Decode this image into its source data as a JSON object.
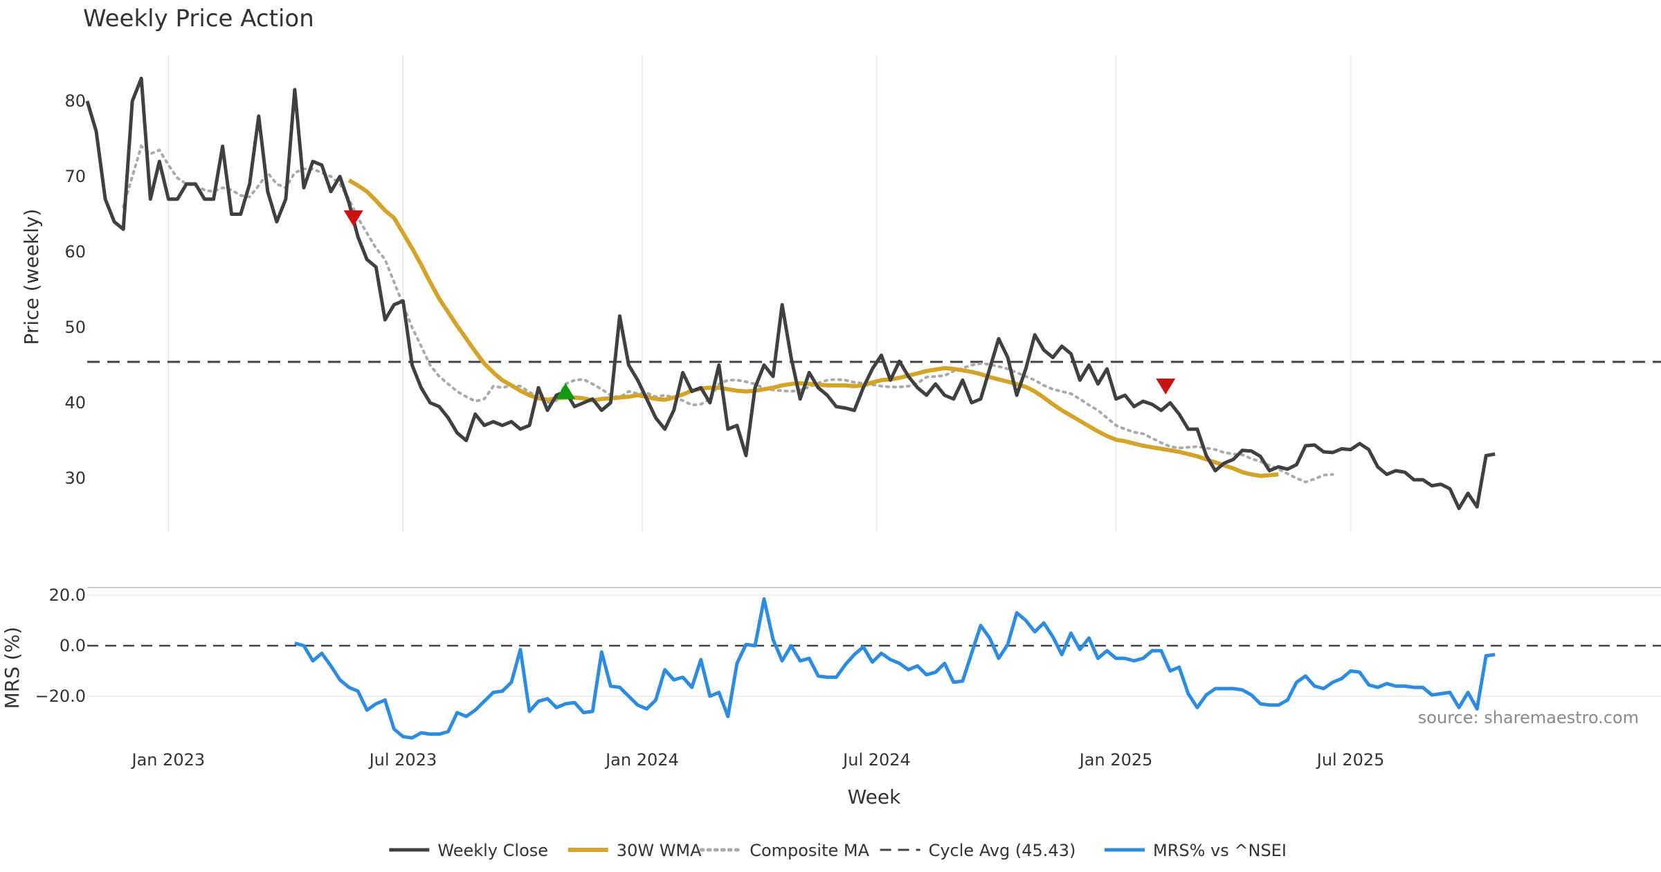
{
  "chart_data": {
    "type": "line",
    "title": "Weekly Price Action",
    "source": "source: sharemaestro.com",
    "xlabel": "Week",
    "x_ticks": [
      {
        "label": "Jan 2023",
        "week": 9
      },
      {
        "label": "Jul 2023",
        "week": 35
      },
      {
        "label": "Jan 2024",
        "week": 61.5
      },
      {
        "label": "Jul 2024",
        "week": 87.5
      },
      {
        "label": "Jan 2025",
        "week": 114
      },
      {
        "label": "Jul 2025",
        "week": 140
      }
    ],
    "x_range": [
      0,
      156
    ],
    "price_panel": {
      "ylabel": "Price (weekly)",
      "ylim": [
        22.5,
        86.5
      ],
      "yticks": [
        30,
        40,
        50,
        60,
        70,
        80
      ],
      "cycle_avg": 45.43,
      "weekly_close": [
        80,
        76,
        67,
        64,
        63,
        80,
        83,
        67,
        72,
        67,
        67,
        69,
        69,
        67,
        67,
        74,
        65,
        65,
        69,
        78,
        68,
        64,
        67,
        81.5,
        68.5,
        72,
        71.5,
        68,
        70,
        66.5,
        62,
        59,
        58,
        51,
        53,
        53.5,
        45,
        42,
        40,
        39.5,
        38,
        36,
        35,
        38.5,
        37,
        37.5,
        37,
        37.5,
        36.5,
        37,
        42,
        39,
        41,
        41.5,
        39.5,
        40,
        40.5,
        39,
        40,
        51.5,
        45,
        43,
        40.5,
        38,
        36.5,
        39,
        44,
        41.5,
        42,
        40,
        45,
        36.5,
        37,
        33,
        42,
        45,
        43.5,
        53,
        46,
        40.5,
        44,
        42,
        41,
        39.5,
        39.3,
        39,
        42,
        44.5,
        46.3,
        43,
        45.5,
        43.5,
        42,
        41,
        42.5,
        41,
        40.5,
        43,
        40,
        40.5,
        44.5,
        48.5,
        46,
        41,
        44.5,
        49,
        47,
        46,
        47.5,
        46.5,
        43,
        45,
        42.5,
        44.5,
        40.5,
        41,
        39.5,
        40.2,
        39.8,
        39,
        40,
        38.5,
        36.5,
        36.5,
        33,
        31,
        32,
        32.5,
        33.7,
        33.6,
        32.9,
        31,
        31.5,
        31.2,
        31.8,
        34.3,
        34.4,
        33.5,
        33.4,
        33.9,
        33.8,
        34.6,
        33.8,
        31.5,
        30.5,
        31,
        30.8,
        29.8,
        29.8,
        29,
        29.2,
        28.6,
        26,
        28,
        26.2,
        33,
        33.2
      ],
      "wma_30": {
        "start_week": 29,
        "values": [
          69.5,
          68.8,
          68,
          66.8,
          65.5,
          64.5,
          62.5,
          60.5,
          58.3,
          56,
          53.8,
          52,
          50.2,
          48.5,
          46.8,
          45.2,
          44,
          43,
          42.3,
          41.6,
          41,
          40.6,
          40.4,
          40.6,
          40.7,
          40.7,
          40.6,
          40.3,
          40.5,
          40.6,
          40.7,
          40.8,
          41,
          40.8,
          40.5,
          40.4,
          40.7,
          41.1,
          41.6,
          41.9,
          42,
          42,
          41.8,
          41.6,
          41.5,
          41.6,
          41.8,
          42,
          42.3,
          42.5,
          42.6,
          42.5,
          42.4,
          42.3,
          42.3,
          42.3,
          42.2,
          42.3,
          42.7,
          43,
          43.1,
          43.3,
          43.6,
          43.9,
          44.2,
          44.4,
          44.6,
          44.5,
          44.3,
          44.1,
          43.8,
          43.4,
          43.1,
          42.8,
          42.5,
          42.1,
          41.5,
          40.7,
          39.8,
          39,
          38.3,
          37.6,
          36.9,
          36.2,
          35.6,
          35.1,
          34.9,
          34.6,
          34.3,
          34.1,
          33.9,
          33.7,
          33.5,
          33.2,
          32.9,
          32.5,
          32.1,
          31.7,
          31.3,
          30.8,
          30.5,
          30.3,
          30.4,
          30.5
        ]
      },
      "composite_ma": {
        "start_week": 4,
        "values": [
          66,
          70,
          74,
          73,
          73.5,
          71.5,
          69.8,
          69,
          68.8,
          68.2,
          68,
          68.5,
          68.2,
          67.5,
          67.3,
          68.8,
          70.5,
          69,
          68.5,
          70.5,
          71,
          71,
          70.5,
          70,
          69,
          67,
          64.5,
          62.5,
          60.5,
          59,
          56,
          53,
          50,
          47.5,
          45,
          43.5,
          42.5,
          41.5,
          40.8,
          40.2,
          40.5,
          42.2,
          42,
          42.3,
          42.2,
          41.4,
          40.8,
          40,
          40.3,
          42.5,
          43,
          43.1,
          42.5,
          41.8,
          41,
          40.7,
          41.5,
          41.2,
          41.3,
          40.8,
          41,
          40.7,
          40.3,
          39.7,
          39.8,
          40.5,
          42.5,
          43,
          43,
          42.8,
          42.5,
          41.9,
          41.7,
          41.6,
          41.5,
          41.7,
          42.1,
          42.6,
          43,
          43.1,
          43,
          42.7,
          42.6,
          42.4,
          42.2,
          42.1,
          42.1,
          42.2,
          42.6,
          43.4,
          43.5,
          43.6,
          44.2,
          44.6,
          45,
          45.2,
          45.1,
          44.8,
          44.5,
          44,
          43.5,
          43,
          42.3,
          41.8,
          41.5,
          41.2,
          40.5,
          39.7,
          39,
          38,
          37,
          36.5,
          36.1,
          35.9,
          35.3,
          34.7,
          34.2,
          34,
          34.1,
          34.2,
          34,
          33.8,
          33.4,
          33.2,
          33.1,
          32.6,
          32.2,
          31.7,
          31.2,
          30.6,
          30,
          29.5,
          29.9,
          30.4,
          30.5
        ]
      },
      "markers": [
        {
          "type": "sell",
          "week": 29.5,
          "value": 64.5
        },
        {
          "type": "buy",
          "week": 53,
          "value": 41.5
        },
        {
          "type": "sell",
          "week": 119.5,
          "value": 42.2
        }
      ]
    },
    "mrs_panel": {
      "ylabel": "MRS (%)",
      "ylim": [
        -37,
        23
      ],
      "yticks": [
        20.0,
        0.0,
        -20.0
      ],
      "ytick_labels": [
        "20.0",
        "0.0",
        "−20.0"
      ],
      "zero_line": 0,
      "start_week": 23,
      "values": [
        1,
        0,
        -6,
        -3,
        -8,
        -13.5,
        -16.5,
        -18,
        -25.5,
        -23,
        -21.5,
        -33,
        -36,
        -36.5,
        -34.5,
        -35,
        -35,
        -34,
        -26.5,
        -28,
        -25.5,
        -22,
        -18.5,
        -18,
        -14.5,
        -1.5,
        -26,
        -22,
        -21,
        -24.5,
        -23,
        -22.5,
        -26.5,
        -26,
        -2.5,
        -16,
        -16.5,
        -20,
        -23.5,
        -25,
        -21.5,
        -9.5,
        -13.5,
        -12.5,
        -16.5,
        -5.5,
        -20,
        -18.5,
        -28,
        -7,
        0.5,
        0,
        18.5,
        2.5,
        -6,
        0,
        -6,
        -5,
        -12,
        -12.5,
        -12.5,
        -7.5,
        -3.5,
        -0.5,
        -6.5,
        -3,
        -5.5,
        -7,
        -9.5,
        -8,
        -11.5,
        -10.5,
        -7,
        -14.5,
        -14,
        -3,
        8,
        3,
        -5,
        0.5,
        13,
        10,
        5.5,
        9,
        3.5,
        -3.5,
        5,
        -1.5,
        3,
        -5,
        -2,
        -5,
        -5,
        -6,
        -5,
        -2,
        -2,
        -10,
        -8.5,
        -19,
        -24.5,
        -19.5,
        -17,
        -17,
        -17,
        -17.5,
        -19.5,
        -23,
        -23.5,
        -23.5,
        -21.5,
        -14.5,
        -12,
        -16,
        -17,
        -14.5,
        -13,
        -10,
        -10.5,
        -15.5,
        -16.5,
        -15,
        -16,
        -16,
        -16.5,
        -16.5,
        -19.5,
        -19,
        -18.5,
        -24.5,
        -18.5,
        -25,
        -4,
        -3.5
      ]
    },
    "legend": [
      {
        "label": "Weekly Close",
        "style": "solid",
        "color": "#404040"
      },
      {
        "label": "30W WMA",
        "style": "solid",
        "color": "#d4a42a"
      },
      {
        "label": "Composite MA",
        "style": "dotted",
        "color": "#aaaaaa"
      },
      {
        "label": "Cycle Avg (45.43)",
        "style": "dashed",
        "color": "#444444"
      },
      {
        "label": "MRS% vs ^NSEI",
        "style": "solid",
        "color": "#2e8ce0"
      }
    ],
    "colors": {
      "close": "#404040",
      "wma": "#d4a42a",
      "composite": "#aaaaaa",
      "cycle": "#444444",
      "mrs": "#2e8ce0",
      "sell": "#cc1111",
      "buy": "#119911",
      "grid": "#e8e8e8"
    }
  }
}
